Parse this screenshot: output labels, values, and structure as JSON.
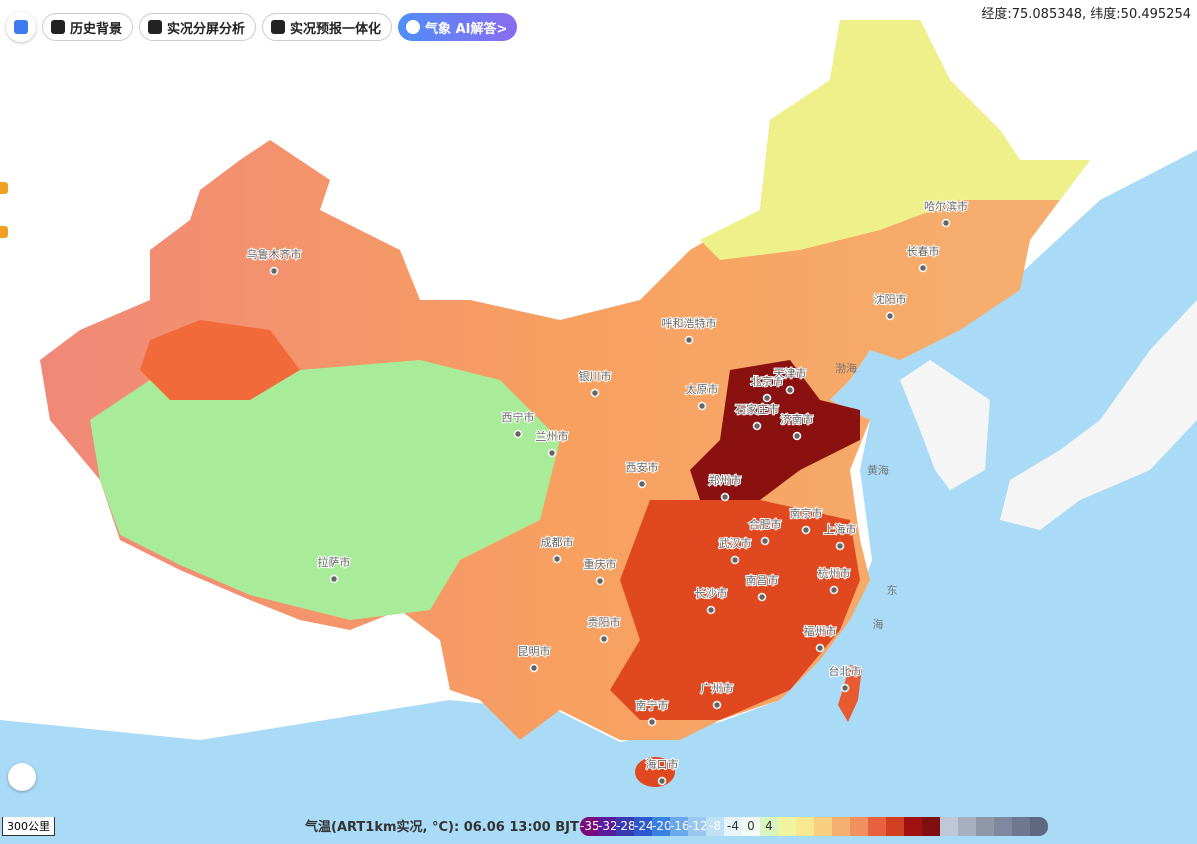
{
  "toolbar": {
    "buttons": [
      "历史背景",
      "实况分屏分析",
      "实况预报一体化",
      "气象 AI解答>"
    ]
  },
  "coordinates": "经度:75.085348, 纬度:50.495254",
  "map": {
    "cities": [
      "乌鲁木齐市",
      "哈尔滨市",
      "长春市",
      "沈阳市",
      "呼和浩特市",
      "北京市",
      "天津市",
      "银川市",
      "太原市",
      "石家庄市",
      "济南市",
      "西宁市",
      "兰州市",
      "郑州市",
      "西安市",
      "合肥市",
      "南京市",
      "上海市",
      "成都市",
      "武汉市",
      "重庆市",
      "杭州市",
      "拉萨市",
      "南昌市",
      "长沙市",
      "福州市",
      "贵阳市",
      "昆明市",
      "台北市",
      "广州市",
      "南宁市",
      "海口市"
    ],
    "seas": [
      "渤海",
      "黄海",
      "东",
      "海"
    ]
  },
  "scale": "300公里",
  "legend": {
    "title": "气温(ART1km实况, °C): 06.06 13:00 BJT",
    "labels": [
      "-35",
      "-32",
      "-28",
      "-24",
      "-20",
      "-16",
      "-12",
      "-8",
      "-4",
      "0",
      "4"
    ]
  }
}
